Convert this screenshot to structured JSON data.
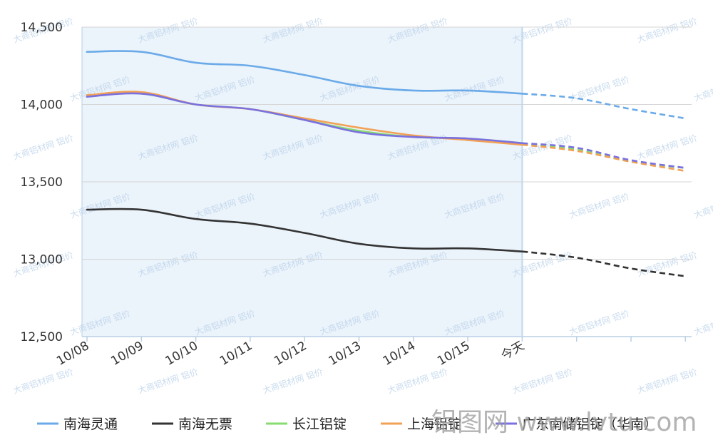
{
  "chart_data": {
    "type": "line",
    "title": "",
    "xlabel": "",
    "ylabel": "",
    "categories": [
      "10/08",
      "10/09",
      "10/10",
      "10/11",
      "10/12",
      "10/13",
      "10/14",
      "10/15",
      "今天",
      "",
      "",
      ""
    ],
    "ylim": [
      12500,
      14500
    ],
    "yticks": [
      12500,
      13000,
      13500,
      14000,
      14500
    ],
    "ytick_labels": [
      "12,500",
      "13,000",
      "13,500",
      "14,000",
      "14,500"
    ],
    "grid": true,
    "legend_position": "bottom",
    "actual_until_index": 8,
    "series": [
      {
        "name": "南海灵通",
        "color": "#6aaae8",
        "values": [
          14340,
          14340,
          14270,
          14250,
          14190,
          14120,
          14090,
          14090,
          14070,
          14040,
          13970,
          13910
        ]
      },
      {
        "name": "南海无票",
        "color": "#333333",
        "values": [
          13320,
          13320,
          13260,
          13230,
          13170,
          13100,
          13070,
          13070,
          13050,
          13010,
          12940,
          12890
        ]
      },
      {
        "name": "长江铝锭",
        "color": "#86dc6e",
        "values": [
          14060,
          14070,
          14000,
          13970,
          13900,
          13830,
          13790,
          13780,
          13750,
          13710,
          13630,
          13590
        ]
      },
      {
        "name": "上海铝锭",
        "color": "#f2a154",
        "values": [
          14060,
          14080,
          14000,
          13970,
          13910,
          13850,
          13800,
          13770,
          13740,
          13700,
          13630,
          13570
        ]
      },
      {
        "name": "广东南储铝锭（华南）",
        "color": "#7b70e0",
        "values": [
          14050,
          14070,
          14000,
          13970,
          13900,
          13820,
          13790,
          13780,
          13750,
          13720,
          13640,
          13590
        ]
      }
    ]
  },
  "colors": {
    "history_band": "#ebf3fb",
    "grid": "#d6d6d6",
    "axis": "#b9cfe4",
    "today_line": "#bfd7ec"
  },
  "watermark": {
    "site_text": "铝图网 www.lvtu.com",
    "tile_text": "大商铝材网 铝价"
  }
}
